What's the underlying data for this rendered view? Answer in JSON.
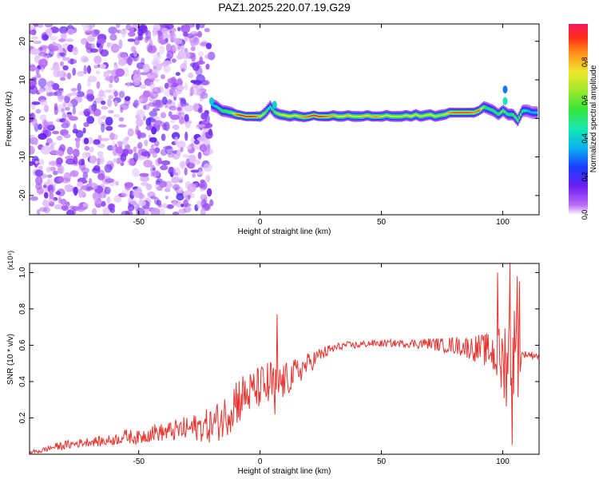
{
  "title": "PAZ1.2025.220.07.19.G29",
  "chart_data": [
    {
      "type": "heatmap",
      "xlabel": "Height of straight line (km)",
      "ylabel": "Frequency (Hz)",
      "xlim": [
        -95,
        115
      ],
      "ylim": [
        -25,
        24.5
      ],
      "xticks": [
        -50,
        0,
        50,
        100
      ],
      "yticks": [
        -20,
        -10,
        0,
        10,
        20
      ],
      "noise_region_x": [
        -95,
        -20
      ],
      "ridge_x": [
        -20,
        -18,
        -16,
        -14,
        -12,
        -10,
        -8,
        -6,
        -4,
        -2,
        0,
        2,
        4,
        6,
        8,
        10,
        12,
        14,
        16,
        18,
        20,
        22,
        24,
        26,
        28,
        30,
        32,
        34,
        36,
        38,
        40,
        42,
        44,
        46,
        48,
        50,
        52,
        54,
        56,
        58,
        60,
        62,
        64,
        66,
        68,
        70,
        72,
        74,
        76,
        78,
        80,
        82,
        84,
        86,
        88,
        90,
        92,
        94,
        96,
        98,
        100,
        102,
        104,
        106,
        108,
        110,
        112,
        114
      ],
      "ridge_freq": [
        3.5,
        3.0,
        2.0,
        1.8,
        1.5,
        1.0,
        0.8,
        0.5,
        0.5,
        0.5,
        0.5,
        1.5,
        3.0,
        1.5,
        1.0,
        0.8,
        0.5,
        0.8,
        0.5,
        0.3,
        0.5,
        0.8,
        0.5,
        0.5,
        0.5,
        0.8,
        0.5,
        0.5,
        0.8,
        0.5,
        0.5,
        0.5,
        0.8,
        0.5,
        0.5,
        0.5,
        0.8,
        0.5,
        0.5,
        0.5,
        0.8,
        0.5,
        1.0,
        0.5,
        0.8,
        1.0,
        0.5,
        0.8,
        1.0,
        1.5,
        1.5,
        1.5,
        1.5,
        1.5,
        1.5,
        2.0,
        3.0,
        2.5,
        2.0,
        1.0,
        2.0,
        1.0,
        1.0,
        -0.5,
        2.0,
        2.0,
        1.5,
        1.5
      ],
      "ridge_amplitude": [
        0.35,
        0.45,
        0.55,
        0.55,
        0.6,
        0.85,
        0.95,
        0.95,
        0.95,
        0.9,
        0.75,
        0.6,
        0.45,
        0.6,
        0.7,
        0.75,
        0.75,
        0.7,
        0.8,
        0.85,
        0.9,
        0.95,
        0.95,
        0.9,
        0.85,
        0.8,
        0.75,
        0.75,
        0.8,
        0.7,
        0.7,
        0.8,
        0.75,
        0.8,
        0.85,
        0.75,
        0.7,
        0.75,
        0.7,
        0.7,
        0.7,
        0.75,
        0.7,
        0.7,
        0.7,
        0.75,
        0.7,
        0.65,
        0.7,
        0.85,
        0.9,
        0.9,
        0.9,
        0.9,
        0.85,
        0.9,
        0.6,
        0.5,
        0.55,
        0.55,
        0.6,
        0.5,
        0.55,
        0.6,
        0.5,
        0.4,
        0.35,
        0.4
      ]
    },
    {
      "type": "colorbar",
      "label": "Normalized spectral amplitude",
      "range": [
        0,
        1
      ],
      "ticks": [
        0.0,
        0.2,
        0.4,
        0.6,
        0.8
      ],
      "tick_labels": [
        "0.0",
        "0.2",
        "0.4",
        "0.6",
        "0.8"
      ]
    },
    {
      "type": "line",
      "xlabel": "Height of straight line (km)",
      "ylabel": "SNR (10 * v/v)",
      "y_multiplier": "(x10⁴)",
      "xlim": [
        -95,
        115
      ],
      "ylim": [
        0,
        1.05
      ],
      "xticks": [
        -50,
        0,
        50,
        100
      ],
      "yticks": [
        0.2,
        0.4,
        0.6,
        0.8,
        1.0
      ],
      "ytick_labels": [
        "0.2",
        "0.4",
        "0.6",
        "0.8",
        "1.0"
      ],
      "line_color": "#e8332f",
      "series": [
        {
          "x": [
            -95,
            -90,
            -85,
            -80,
            -75,
            -70,
            -65,
            -60,
            -55,
            -50,
            -45,
            -40,
            -35,
            -30,
            -25,
            -20,
            -15,
            -10,
            -5,
            0,
            5,
            10,
            15,
            20,
            25,
            30,
            35,
            40,
            45,
            50,
            55,
            60,
            65,
            70,
            75,
            80,
            85,
            90,
            95,
            100,
            102,
            104,
            106,
            108,
            110,
            115
          ],
          "y": [
            0.01,
            0.02,
            0.04,
            0.05,
            0.06,
            0.07,
            0.07,
            0.08,
            0.1,
            0.09,
            0.12,
            0.12,
            0.13,
            0.14,
            0.15,
            0.16,
            0.2,
            0.3,
            0.33,
            0.37,
            0.38,
            0.4,
            0.45,
            0.5,
            0.55,
            0.58,
            0.6,
            0.6,
            0.61,
            0.61,
            0.61,
            0.61,
            0.61,
            0.61,
            0.6,
            0.6,
            0.59,
            0.58,
            0.57,
            0.5,
            0.55,
            0.6,
            0.52,
            0.55,
            0.55,
            0.54
          ],
          "spread": [
            0.01,
            0.015,
            0.02,
            0.025,
            0.025,
            0.025,
            0.03,
            0.03,
            0.04,
            0.04,
            0.05,
            0.05,
            0.06,
            0.07,
            0.08,
            0.1,
            0.12,
            0.15,
            0.12,
            0.12,
            0.15,
            0.1,
            0.08,
            0.06,
            0.04,
            0.03,
            0.02,
            0.02,
            0.02,
            0.02,
            0.02,
            0.02,
            0.03,
            0.03,
            0.04,
            0.05,
            0.06,
            0.08,
            0.1,
            0.22,
            0.3,
            0.28,
            0.25,
            0.02,
            0.02,
            0.02
          ],
          "spikes": [
            {
              "x": 7,
              "y": 0.77
            },
            {
              "x": 6,
              "y": 0.22
            },
            {
              "x": 98,
              "y": 1.0
            },
            {
              "x": 103,
              "y": 1.05
            },
            {
              "x": 104,
              "y": 0.05
            },
            {
              "x": 106,
              "y": 0.98
            },
            {
              "x": 107,
              "y": 0.95
            }
          ]
        }
      ]
    }
  ]
}
